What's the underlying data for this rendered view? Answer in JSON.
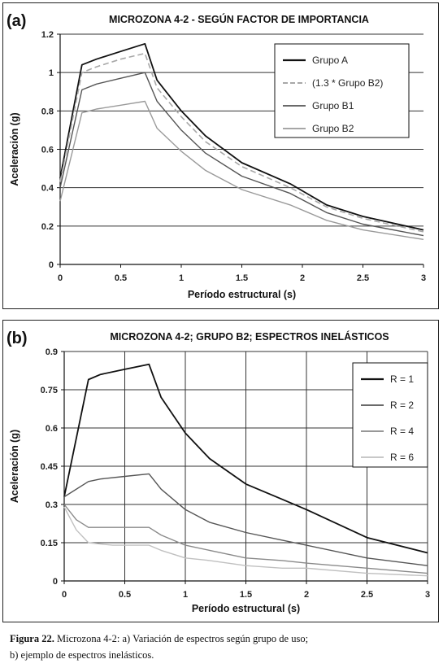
{
  "chart_data": [
    {
      "type": "line",
      "panel_label": "(a)",
      "title": "MICROZONA 4-2 - SEGÚN FACTOR DE IMPORTANCIA",
      "xlabel": "Período estructural (s)",
      "ylabel": "Aceleración (g)",
      "xlim": [
        0,
        3
      ],
      "ylim": [
        0,
        1.2
      ],
      "xticks": [
        0,
        0.5,
        1,
        1.5,
        2,
        2.5,
        3
      ],
      "xtick_labels": [
        "0",
        "0.5",
        "1",
        "1.5",
        "2",
        "2.5",
        "3"
      ],
      "yticks": [
        0,
        0.2,
        0.4,
        0.6,
        0.8,
        1,
        1.2
      ],
      "ytick_labels": [
        "0",
        "0.2",
        "0.4",
        "0.6",
        "0.8",
        "1",
        "1.2"
      ],
      "grid": "horizontal",
      "legend_position": "top-right",
      "series": [
        {
          "name": "Grupo A",
          "color": "#111111",
          "dashed": false,
          "width": 1.8,
          "x": [
            0,
            0.18,
            0.3,
            0.5,
            0.7,
            0.8,
            1.0,
            1.2,
            1.5,
            1.9,
            2.2,
            2.5,
            3.0
          ],
          "y": [
            0.45,
            1.04,
            1.07,
            1.11,
            1.15,
            0.96,
            0.8,
            0.67,
            0.53,
            0.42,
            0.31,
            0.25,
            0.18
          ]
        },
        {
          "name": "(1.3 * Grupo B2)",
          "color": "#a8a8a8",
          "dashed": true,
          "width": 1.6,
          "x": [
            0,
            0.18,
            0.3,
            0.5,
            0.7,
            0.8,
            1.0,
            1.2,
            1.5,
            1.9,
            2.2,
            2.5,
            3.0
          ],
          "y": [
            0.43,
            1.0,
            1.03,
            1.07,
            1.1,
            0.92,
            0.77,
            0.64,
            0.51,
            0.4,
            0.3,
            0.24,
            0.17
          ]
        },
        {
          "name": "Grupo B1",
          "color": "#555555",
          "dashed": false,
          "width": 1.4,
          "x": [
            0,
            0.18,
            0.3,
            0.5,
            0.7,
            0.8,
            1.0,
            1.2,
            1.5,
            1.9,
            2.2,
            2.5,
            3.0
          ],
          "y": [
            0.4,
            0.91,
            0.94,
            0.97,
            1.0,
            0.85,
            0.7,
            0.58,
            0.46,
            0.37,
            0.27,
            0.21,
            0.15
          ]
        },
        {
          "name": "Grupo B2",
          "color": "#9a9a9a",
          "dashed": false,
          "width": 1.4,
          "x": [
            0,
            0.18,
            0.3,
            0.5,
            0.7,
            0.8,
            1.0,
            1.2,
            1.5,
            1.9,
            2.2,
            2.5,
            3.0
          ],
          "y": [
            0.33,
            0.79,
            0.81,
            0.83,
            0.85,
            0.71,
            0.59,
            0.49,
            0.39,
            0.31,
            0.23,
            0.18,
            0.13
          ]
        }
      ]
    },
    {
      "type": "line",
      "panel_label": "(b)",
      "title": "MICROZONA 4-2; GRUPO B2; ESPECTROS INELÁSTICOS",
      "xlabel": "Período estructural (s)",
      "ylabel": "Aceleración (g)",
      "xlim": [
        0,
        3
      ],
      "ylim": [
        0,
        0.9
      ],
      "xticks": [
        0,
        0.5,
        1,
        1.5,
        2,
        2.5,
        3
      ],
      "xtick_labels": [
        "0",
        "0.5",
        "1",
        "1.5",
        "2",
        "2.5",
        "3"
      ],
      "yticks": [
        0,
        0.15,
        0.3,
        0.45,
        0.6,
        0.75,
        0.9
      ],
      "ytick_labels": [
        "0",
        "0.15",
        "0.3",
        "0.45",
        "0.6",
        "0.75",
        "0.9"
      ],
      "grid": "both",
      "legend_position": "right",
      "series": [
        {
          "name": "R = 1",
          "color": "#111111",
          "dashed": false,
          "width": 1.8,
          "x": [
            0,
            0.2,
            0.3,
            0.5,
            0.7,
            0.8,
            1.0,
            1.2,
            1.5,
            1.8,
            2.0,
            2.5,
            3.0
          ],
          "y": [
            0.33,
            0.79,
            0.81,
            0.83,
            0.85,
            0.72,
            0.58,
            0.48,
            0.38,
            0.32,
            0.28,
            0.17,
            0.11
          ]
        },
        {
          "name": "R = 2",
          "color": "#555555",
          "dashed": false,
          "width": 1.4,
          "x": [
            0,
            0.2,
            0.3,
            0.5,
            0.7,
            0.8,
            1.0,
            1.2,
            1.5,
            1.8,
            2.0,
            2.5,
            3.0
          ],
          "y": [
            0.33,
            0.39,
            0.4,
            0.41,
            0.42,
            0.36,
            0.28,
            0.23,
            0.19,
            0.16,
            0.14,
            0.09,
            0.06
          ]
        },
        {
          "name": "R = 4",
          "color": "#8a8a8a",
          "dashed": false,
          "width": 1.4,
          "x": [
            0,
            0.1,
            0.2,
            0.4,
            0.7,
            0.8,
            1.0,
            1.2,
            1.5,
            1.8,
            2.0,
            2.5,
            3.0
          ],
          "y": [
            0.3,
            0.24,
            0.21,
            0.21,
            0.21,
            0.18,
            0.14,
            0.12,
            0.09,
            0.08,
            0.07,
            0.05,
            0.03
          ]
        },
        {
          "name": "R = 6",
          "color": "#c0c0c0",
          "dashed": false,
          "width": 1.4,
          "x": [
            0,
            0.1,
            0.2,
            0.4,
            0.7,
            0.8,
            1.0,
            1.2,
            1.5,
            1.8,
            2.0,
            2.5,
            3.0
          ],
          "y": [
            0.29,
            0.2,
            0.15,
            0.14,
            0.14,
            0.12,
            0.09,
            0.08,
            0.06,
            0.05,
            0.05,
            0.03,
            0.02
          ]
        }
      ]
    }
  ],
  "caption": {
    "figure_label": "Figura 22.",
    "line1": " Microzona 4-2: a) Variación de espectros según grupo de uso;",
    "line2": "b) ejemplo de espectros inelásticos."
  }
}
